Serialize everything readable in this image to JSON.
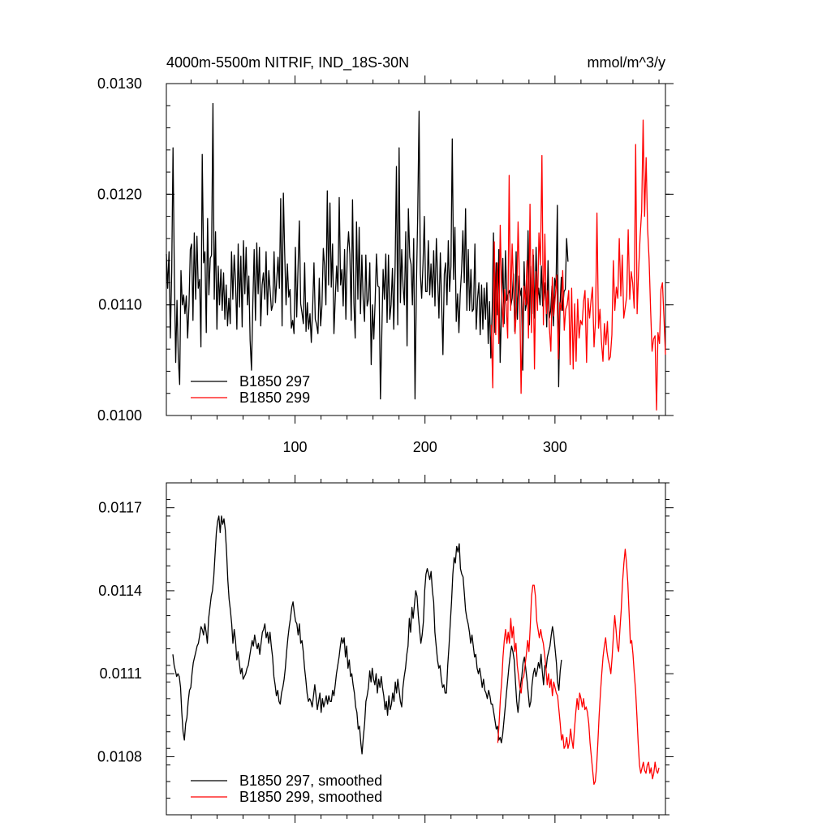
{
  "chart_data": [
    {
      "type": "line",
      "title": "4000m-5500m NITRIF, IND_18S-30N",
      "units": "mmol/m^3/y",
      "xlim": [
        1,
        385
      ],
      "ylim": [
        0.01,
        0.013
      ],
      "xticks": [
        100,
        200,
        300
      ],
      "yticks": [
        0.01,
        0.011,
        0.012,
        0.013
      ],
      "ytick_labels": [
        "0.0100",
        "0.0110",
        "0.0120",
        "0.0130"
      ],
      "legend_placement": "bottom-left",
      "series": [
        {
          "name": "B1850 297",
          "color": "#000000",
          "x_start": 1,
          "x_end": 310,
          "y": [
            0.01146,
            0.01115,
            0.01148,
            0.0107,
            0.0113,
            0.01242,
            0.0113,
            0.01048,
            0.01104,
            0.01052,
            0.01028,
            0.01131,
            0.011,
            0.01109,
            0.01092,
            0.01108,
            0.0107,
            0.011,
            0.0115,
            0.01155,
            0.01086,
            0.01165,
            0.01105,
            0.01162,
            0.01115,
            0.01123,
            0.01062,
            0.01236,
            0.01138,
            0.01148,
            0.01075,
            0.01178,
            0.01109,
            0.01142,
            0.01145,
            0.01282,
            0.01105,
            0.01166,
            0.01078,
            0.01135,
            0.011,
            0.01132,
            0.01095,
            0.01129,
            0.01087,
            0.01118,
            0.01081,
            0.01106,
            0.01083,
            0.01148,
            0.01105,
            0.01145,
            0.01121,
            0.01078,
            0.01155,
            0.01098,
            0.01144,
            0.0108,
            0.01158,
            0.0111,
            0.01152,
            0.011,
            0.01126,
            0.01068,
            0.01041,
            0.011,
            0.0115,
            0.01086,
            0.01156,
            0.0111,
            0.01152,
            0.01081,
            0.01118,
            0.01129,
            0.01105,
            0.01148,
            0.01091,
            0.01131,
            0.01114,
            0.01095,
            0.011,
            0.01148,
            0.01102,
            0.01122,
            0.01143,
            0.01115,
            0.01196,
            0.01081,
            0.01201,
            0.01147,
            0.011,
            0.01137,
            0.01107,
            0.01114,
            0.01079,
            0.01086,
            0.01074,
            0.01152,
            0.01089,
            0.01132,
            0.01176,
            0.01101,
            0.01093,
            0.01083,
            0.01138,
            0.01076,
            0.01102,
            0.01078,
            0.01092,
            0.01066,
            0.01098,
            0.01138,
            0.01087,
            0.01082,
            0.01074,
            0.01124,
            0.01081,
            0.01099,
            0.01151,
            0.01135,
            0.011,
            0.01203,
            0.01118,
            0.01192,
            0.01116,
            0.01155,
            0.01074,
            0.01106,
            0.01135,
            0.01112,
            0.01197,
            0.01118,
            0.01132,
            0.01099,
            0.0115,
            0.01087,
            0.01146,
            0.01166,
            0.01146,
            0.01086,
            0.01195,
            0.01102,
            0.0107,
            0.01175,
            0.01105,
            0.0117,
            0.01092,
            0.01145,
            0.01105,
            0.01085,
            0.01145,
            0.01099,
            0.01105,
            0.01138,
            0.01046,
            0.011,
            0.01069,
            0.01104,
            0.01146,
            0.01117,
            0.01116,
            0.01015,
            0.01075,
            0.01132,
            0.01105,
            0.01146,
            0.01084,
            0.01145,
            0.01087,
            0.011,
            0.01133,
            0.01078,
            0.01136,
            0.01225,
            0.01082,
            0.01242,
            0.01102,
            0.0115,
            0.01117,
            0.011,
            0.01166,
            0.01063,
            0.01187,
            0.01143,
            0.01137,
            0.011,
            0.0116,
            0.01015,
            0.01116,
            0.0118,
            0.01275,
            0.01128,
            0.01106,
            0.01138,
            0.0118,
            0.01112,
            0.01112,
            0.01158,
            0.01109,
            0.01137,
            0.01107,
            0.01149,
            0.01099,
            0.0116,
            0.01124,
            0.01088,
            0.01147,
            0.01102,
            0.01055,
            0.01128,
            0.01138,
            0.011,
            0.01158,
            0.01112,
            0.01135,
            0.0125,
            0.01123,
            0.0117,
            0.01085,
            0.0111,
            0.01075,
            0.0111,
            0.01131,
            0.01167,
            0.0112,
            0.01187,
            0.01095,
            0.0115,
            0.01095,
            0.01132,
            0.01094,
            0.01096,
            0.01155,
            0.01078,
            0.01106,
            0.0112,
            0.01073,
            0.01118,
            0.01078,
            0.01115,
            0.01087,
            0.0112,
            0.01065,
            0.01103,
            0.01052,
            0.01095,
            0.01165,
            0.01075,
            0.01138,
            0.01091,
            0.0115,
            0.01048,
            0.01092,
            0.01142,
            0.01083,
            0.01149,
            0.01104,
            0.0111,
            0.01113,
            0.01099,
            0.01106,
            0.01128,
            0.01076,
            0.01148,
            0.01087,
            0.01126,
            0.01108,
            0.01115,
            0.01041,
            0.01139,
            0.01095,
            0.01102,
            0.01167,
            0.01082,
            0.01135,
            0.01092,
            0.01145,
            0.01088,
            0.01152,
            0.01104,
            0.01115,
            0.011,
            0.01135,
            0.01099,
            0.01105,
            0.0112,
            0.0108,
            0.0114,
            0.01088,
            0.01095,
            0.01117,
            0.01081,
            0.01124,
            0.01115,
            0.0119,
            0.01026,
            0.011,
            0.01125,
            0.01095,
            0.01112,
            0.01114,
            0.0116,
            0.01139
          ]
        },
        {
          "name": "B1850 299",
          "color": "#ff0000",
          "x_start": 251,
          "x_end": 385,
          "y": [
            0.01082,
            0.01025,
            0.01157,
            0.01073,
            0.01138,
            0.01065,
            0.01172,
            0.01112,
            0.0108,
            0.01114,
            0.011,
            0.0107,
            0.01217,
            0.01095,
            0.01155,
            0.01115,
            0.01074,
            0.01099,
            0.01175,
            0.01121,
            0.0102,
            0.01089,
            0.01117,
            0.011,
            0.0114,
            0.0107,
            0.01191,
            0.01075,
            0.0115,
            0.01042,
            0.0113,
            0.01095,
            0.01165,
            0.01136,
            0.01235,
            0.01082,
            0.01164,
            0.01092,
            0.01113,
            0.0108,
            0.01058,
            0.01125,
            0.0109,
            0.01108,
            0.01127,
            0.01051,
            0.01102,
            0.01095,
            0.01131,
            0.01077,
            0.01096,
            0.011,
            0.01113,
            0.01046,
            0.01115,
            0.01042,
            0.01101,
            0.01049,
            0.01105,
            0.0107,
            0.01086,
            0.01082,
            0.01103,
            0.01113,
            0.01048,
            0.01106,
            0.01088,
            0.01104,
            0.01116,
            0.01062,
            0.01085,
            0.01183,
            0.01079,
            0.01096,
            0.01067,
            0.01049,
            0.01083,
            0.01064,
            0.01085,
            0.0105,
            0.01053,
            0.01073,
            0.0114,
            0.01095,
            0.01116,
            0.01106,
            0.0116,
            0.01108,
            0.01145,
            0.01088,
            0.01098,
            0.01108,
            0.01168,
            0.01105,
            0.0113,
            0.0112,
            0.01097,
            0.01245,
            0.01092,
            0.01132,
            0.01162,
            0.01185,
            0.01267,
            0.0118,
            0.01233,
            0.01169,
            0.01142,
            0.01096,
            0.01058,
            0.01069,
            0.01072,
            0.01005,
            0.01075,
            0.01065,
            0.01114,
            0.0112,
            0.01088,
            0.01055
          ]
        }
      ]
    },
    {
      "type": "line",
      "xlim": [
        1,
        385
      ],
      "ylim": [
        0.01059,
        0.01179
      ],
      "xticks": [
        100,
        200,
        300
      ],
      "yticks": [
        0.0108,
        0.0111,
        0.0114,
        0.0117
      ],
      "ytick_labels": [
        "0.0108",
        "0.0111",
        "0.0114",
        "0.0117"
      ],
      "legend_placement": "bottom-left",
      "series": [
        {
          "name": "B1850 297, smoothed",
          "color": "#000000",
          "x_start": 6,
          "x_end": 305,
          "y": [
            0.01117,
            0.01113,
            0.01111,
            0.01109,
            0.0111,
            0.01109,
            0.01105,
            0.01096,
            0.01089,
            0.01086,
            0.01092,
            0.01094,
            0.011,
            0.01104,
            0.01105,
            0.0111,
            0.01114,
            0.01116,
            0.01118,
            0.0112,
            0.01121,
            0.01124,
            0.01127,
            0.01126,
            0.01124,
            0.01128,
            0.01125,
            0.01121,
            0.0113,
            0.01134,
            0.01138,
            0.0114,
            0.01145,
            0.01153,
            0.01161,
            0.01165,
            0.01167,
            0.01161,
            0.01167,
            0.01164,
            0.01166,
            0.01162,
            0.01154,
            0.01144,
            0.01137,
            0.01133,
            0.01128,
            0.01121,
            0.01126,
            0.01122,
            0.01115,
            0.01118,
            0.01114,
            0.0111,
            0.01112,
            0.01108,
            0.01109,
            0.0111,
            0.01112,
            0.01113,
            0.01116,
            0.01119,
            0.01122,
            0.0112,
            0.01124,
            0.01121,
            0.01119,
            0.01121,
            0.01117,
            0.01121,
            0.01125,
            0.01126,
            0.01128,
            0.01123,
            0.01125,
            0.01121,
            0.01125,
            0.0112,
            0.01116,
            0.01109,
            0.01106,
            0.01102,
            0.01104,
            0.011,
            0.01099,
            0.01103,
            0.01105,
            0.01108,
            0.01112,
            0.01118,
            0.01123,
            0.01127,
            0.0113,
            0.01134,
            0.01136,
            0.01132,
            0.01129,
            0.01128,
            0.01124,
            0.01128,
            0.01121,
            0.01122,
            0.01118,
            0.01112,
            0.01108,
            0.01103,
            0.011,
            0.01101,
            0.011,
            0.01098,
            0.01102,
            0.01106,
            0.01102,
            0.01097,
            0.011,
            0.01103,
            0.01096,
            0.01101,
            0.01098,
            0.011,
            0.01102,
            0.01099,
            0.01102,
            0.011,
            0.011,
            0.01104,
            0.01102,
            0.01106,
            0.0111,
            0.01113,
            0.01116,
            0.0112,
            0.01123,
            0.01121,
            0.01123,
            0.01116,
            0.0112,
            0.01112,
            0.01115,
            0.01109,
            0.0111,
            0.01106,
            0.01103,
            0.01098,
            0.01096,
            0.0109,
            0.01091,
            0.01085,
            0.01081,
            0.01087,
            0.01092,
            0.011,
            0.01102,
            0.01105,
            0.01111,
            0.01107,
            0.01112,
            0.01108,
            0.01106,
            0.0111,
            0.01103,
            0.01108,
            0.01105,
            0.01109,
            0.01105,
            0.01102,
            0.01097,
            0.011,
            0.01095,
            0.01102,
            0.01097,
            0.01099,
            0.01103,
            0.011,
            0.01107,
            0.01103,
            0.01108,
            0.01104,
            0.011,
            0.01098,
            0.01105,
            0.01109,
            0.01112,
            0.01117,
            0.0112,
            0.0113,
            0.01125,
            0.01134,
            0.0113,
            0.01135,
            0.0114,
            0.01138,
            0.01131,
            0.01126,
            0.01121,
            0.01124,
            0.01129,
            0.0114,
            0.01146,
            0.01148,
            0.01146,
            0.01144,
            0.01147,
            0.0114,
            0.01136,
            0.01125,
            0.0112,
            0.01115,
            0.01112,
            0.01113,
            0.01108,
            0.01105,
            0.01106,
            0.01103,
            0.01103,
            0.01113,
            0.0112,
            0.01128,
            0.01136,
            0.01146,
            0.01152,
            0.0115,
            0.01156,
            0.01154,
            0.01157,
            0.01148,
            0.01146,
            0.01145,
            0.01139,
            0.01133,
            0.0113,
            0.01128,
            0.01125,
            0.01121,
            0.01124,
            0.0112,
            0.01116,
            0.01117,
            0.01112,
            0.0111,
            0.01112,
            0.01109,
            0.01105,
            0.01108,
            0.01104,
            0.01103,
            0.01101,
            0.01104,
            0.01102,
            0.01099,
            0.01099,
            0.01096,
            0.01093,
            0.0109,
            0.01091,
            0.01086,
            0.01087,
            0.01085,
            0.01088,
            0.01093,
            0.01098,
            0.01103,
            0.01108,
            0.01113,
            0.01117,
            0.0112,
            0.01118,
            0.01115,
            0.01107,
            0.011,
            0.01096,
            0.01101,
            0.01106,
            0.01109,
            0.01114,
            0.01116,
            0.01112,
            0.01108,
            0.01103,
            0.01098,
            0.011,
            0.01106,
            0.0111,
            0.01112,
            0.01109,
            0.01111,
            0.01114,
            0.01112,
            0.01117,
            0.01111,
            0.01106,
            0.01113,
            0.01112,
            0.01116,
            0.01118,
            0.0112,
            0.01124,
            0.01127,
            0.01124,
            0.01119,
            0.01114,
            0.01107,
            0.01104,
            0.01111,
            0.01115
          ]
        },
        {
          "name": "B1850 299, smoothed",
          "color": "#ff0000",
          "x_start": 256,
          "x_end": 380,
          "y": [
            0.01085,
            0.01092,
            0.01101,
            0.01107,
            0.01116,
            0.01122,
            0.01126,
            0.01121,
            0.01125,
            0.01121,
            0.0113,
            0.01123,
            0.01127,
            0.01118,
            0.01121,
            0.01113,
            0.01109,
            0.01105,
            0.01103,
            0.01108,
            0.01109,
            0.01113,
            0.01117,
            0.01122,
            0.01118,
            0.01127,
            0.01138,
            0.01142,
            0.01142,
            0.01138,
            0.01129,
            0.01126,
            0.01123,
            0.01126,
            0.01123,
            0.01121,
            0.01117,
            0.01112,
            0.01106,
            0.0111,
            0.01105,
            0.01108,
            0.01102,
            0.01107,
            0.01105,
            0.01103,
            0.01102,
            0.01097,
            0.01092,
            0.01086,
            0.01088,
            0.01083,
            0.01084,
            0.01087,
            0.01083,
            0.01085,
            0.0109,
            0.01086,
            0.01083,
            0.0109,
            0.01096,
            0.01101,
            0.01097,
            0.01103,
            0.01101,
            0.01098,
            0.01101,
            0.01097,
            0.01098,
            0.01096,
            0.01092,
            0.01085,
            0.0108,
            0.01075,
            0.0107,
            0.01071,
            0.01076,
            0.01085,
            0.01095,
            0.01103,
            0.0111,
            0.01116,
            0.0112,
            0.01123,
            0.01118,
            0.01115,
            0.01113,
            0.0111,
            0.01116,
            0.01124,
            0.01131,
            0.01126,
            0.0112,
            0.01118,
            0.01126,
            0.01133,
            0.01143,
            0.0115,
            0.01155,
            0.0115,
            0.01143,
            0.01132,
            0.01121,
            0.01122,
            0.01117,
            0.0111,
            0.01104,
            0.01095,
            0.01085,
            0.01077,
            0.01074,
            0.01076,
            0.01078,
            0.01075,
            0.01074,
            0.01077,
            0.01078,
            0.01074,
            0.01076,
            0.01072,
            0.01074,
            0.01078,
            0.01075,
            0.01074,
            0.01076
          ]
        }
      ]
    }
  ]
}
